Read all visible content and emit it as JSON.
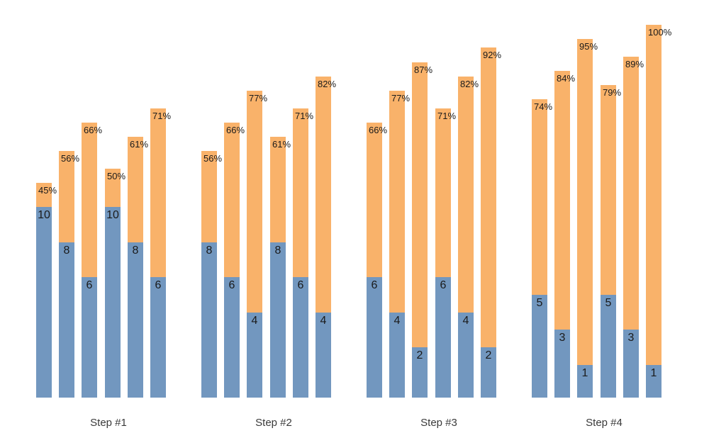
{
  "chart_data": {
    "type": "bar",
    "variant": "grouped-stacked",
    "title": "",
    "xlabel": "",
    "ylabel": "",
    "axes_visible": false,
    "grid": false,
    "legend": null,
    "categories": [
      "Step #1",
      "Step #2",
      "Step #3",
      "Step #4"
    ],
    "bars_per_group": 6,
    "series_description": {
      "bottom_segment": "count value printed at top of blue segment",
      "top_segment": "percentage printed near top of orange segment"
    },
    "groups": [
      {
        "label": "Step #1",
        "bars": [
          {
            "count": 10,
            "percent": 45
          },
          {
            "count": 8,
            "percent": 56
          },
          {
            "count": 6,
            "percent": 66
          },
          {
            "count": 10,
            "percent": 50
          },
          {
            "count": 8,
            "percent": 61
          },
          {
            "count": 6,
            "percent": 71
          }
        ]
      },
      {
        "label": "Step #2",
        "bars": [
          {
            "count": 8,
            "percent": 56
          },
          {
            "count": 6,
            "percent": 66
          },
          {
            "count": 4,
            "percent": 77
          },
          {
            "count": 8,
            "percent": 61
          },
          {
            "count": 6,
            "percent": 71
          },
          {
            "count": 4,
            "percent": 82
          }
        ]
      },
      {
        "label": "Step #3",
        "bars": [
          {
            "count": 6,
            "percent": 66
          },
          {
            "count": 4,
            "percent": 77
          },
          {
            "count": 2,
            "percent": 87
          },
          {
            "count": 6,
            "percent": 71
          },
          {
            "count": 4,
            "percent": 82
          },
          {
            "count": 2,
            "percent": 92
          }
        ]
      },
      {
        "label": "Step #4",
        "bars": [
          {
            "count": 5,
            "percent": 74
          },
          {
            "count": 3,
            "percent": 84
          },
          {
            "count": 1,
            "percent": 95
          },
          {
            "count": 5,
            "percent": 79
          },
          {
            "count": 3,
            "percent": 89
          },
          {
            "count": 1,
            "percent": 100
          }
        ]
      }
    ],
    "colors": {
      "count_fill": "#7297bf",
      "percent_fill": "#f9b26a",
      "bar_label_text": "#1a1a1a",
      "group_label_text": "#3a3a3a",
      "background": "#ffffff"
    }
  }
}
